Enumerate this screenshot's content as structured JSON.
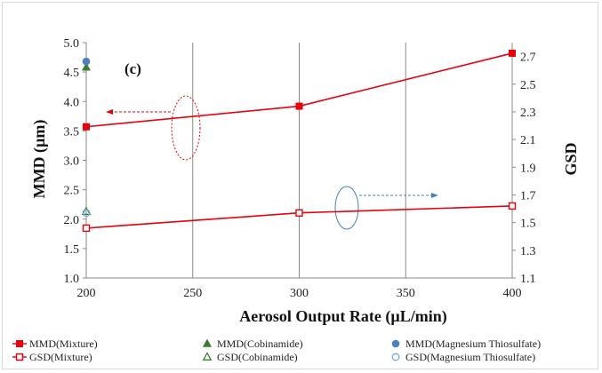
{
  "chart_data": {
    "type": "line",
    "panel_label": "(c)",
    "xlabel": "Aerosol Output Rate (µL/min)",
    "ylabel_left": "MMD (µm)",
    "ylabel_right": "GSD",
    "x_ticks": [
      200,
      250,
      300,
      350,
      400
    ],
    "y_left_ticks": [
      "1.0",
      "1.5",
      "2.0",
      "2.5",
      "3.0",
      "3.5",
      "4.0",
      "4.5",
      "5.0"
    ],
    "y_right_ticks": [
      "1.1",
      "1.3",
      "1.5",
      "1.7",
      "1.9",
      "2.1",
      "2.3",
      "2.5",
      "2.7"
    ],
    "xlim": [
      200,
      400
    ],
    "ylim_left": [
      1.0,
      5.0
    ],
    "ylim_right": [
      1.1,
      2.8
    ],
    "grid": "vertical",
    "legend_position": "bottom",
    "series": [
      {
        "name": "MMD(Mixture)",
        "axis": "left",
        "x": [
          200,
          300,
          400
        ],
        "y": [
          3.57,
          3.92,
          4.82
        ],
        "color": "#e8000b",
        "marker": "filled-square",
        "line": true
      },
      {
        "name": "MMD(Cobinamide)",
        "axis": "left",
        "x": [
          200
        ],
        "y": [
          4.58
        ],
        "color": "#3a7d32",
        "marker": "filled-triangle",
        "line": false
      },
      {
        "name": "MMD(Magnesium Thiosulfate)",
        "axis": "left",
        "x": [
          200
        ],
        "y": [
          4.68
        ],
        "color": "#4a7fc0",
        "marker": "filled-circle",
        "line": false
      },
      {
        "name": "GSD(Mixture)",
        "axis": "right",
        "x": [
          200,
          300,
          400
        ],
        "y": [
          1.46,
          1.57,
          1.62
        ],
        "color": "#e8000b",
        "marker": "open-square",
        "line": true
      },
      {
        "name": "GSD(Cobinamide)",
        "axis": "right",
        "x": [
          200
        ],
        "y": [
          1.58
        ],
        "color": "#3a7d32",
        "marker": "open-triangle",
        "line": false
      },
      {
        "name": "GSD(Magnesium Thiosulfate)",
        "axis": "right",
        "x": [
          200
        ],
        "y": [
          1.57
        ],
        "color": "#7ba7d8",
        "marker": "open-circle",
        "line": false
      }
    ]
  }
}
